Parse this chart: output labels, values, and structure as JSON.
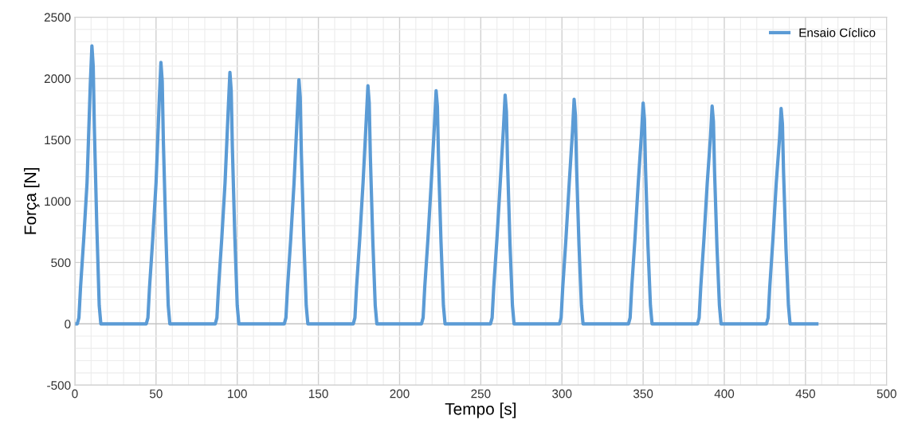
{
  "chart_data": {
    "type": "line",
    "xlabel": "Tempo [s]",
    "ylabel": "Força [N]",
    "xlim": [
      0,
      500
    ],
    "xticks": [
      0,
      50,
      100,
      150,
      200,
      250,
      300,
      350,
      400,
      450,
      500
    ],
    "ylim": [
      -500,
      2500
    ],
    "yticks": [
      -500,
      0,
      500,
      1000,
      1500,
      2000,
      2500
    ],
    "grid": true,
    "legend": "top right",
    "line_style": "solid",
    "series": [
      {
        "name": "Ensaio Cíclico",
        "color": "#5b9bd5",
        "x": [
          0,
          1.5,
          2.5,
          3.5,
          5.5,
          7.5,
          9.5,
          10.5,
          11.3,
          12,
          13.5,
          15,
          16,
          44,
          45,
          46,
          48,
          50,
          52,
          53,
          53.8,
          54.5,
          56,
          57.5,
          58.5,
          86.5,
          87.5,
          88.5,
          90.5,
          92.5,
          94.5,
          95.5,
          96.3,
          97,
          98.5,
          100,
          101,
          129,
          130,
          131,
          133,
          135,
          137,
          138,
          138.8,
          139.5,
          141,
          142.5,
          143.5,
          171.5,
          172.5,
          173.5,
          175.5,
          177.5,
          179.5,
          180.5,
          181.3,
          182,
          183.5,
          185,
          186,
          213.5,
          214.5,
          215.5,
          217.5,
          219.5,
          221.5,
          222.5,
          223.3,
          224,
          225.5,
          227,
          228,
          256,
          257,
          258,
          260,
          262,
          264,
          265,
          265.8,
          266.5,
          268,
          269.5,
          270.5,
          298.5,
          299.5,
          300.5,
          302.5,
          304.5,
          306.5,
          307.5,
          308.3,
          309,
          310.5,
          312,
          313,
          341,
          342,
          343,
          345,
          347,
          349,
          350,
          350.8,
          351.5,
          353,
          354.5,
          355.5,
          383.5,
          384.5,
          385.5,
          387.5,
          389.5,
          391.5,
          392.5,
          393.3,
          394,
          395.5,
          397,
          398,
          426,
          427,
          428,
          430,
          432,
          434,
          435,
          435.8,
          436.5,
          438,
          439.5,
          440.5,
          457
        ],
        "values": [
          0,
          0,
          50,
          300,
          700,
          1150,
          1950,
          2265,
          2100,
          1600,
          800,
          150,
          0,
          0,
          50,
          300,
          700,
          1150,
          1830,
          2130,
          1980,
          1490,
          750,
          150,
          0,
          0,
          50,
          300,
          700,
          1150,
          1760,
          2050,
          1900,
          1440,
          720,
          150,
          0,
          0,
          50,
          300,
          700,
          1150,
          1710,
          1990,
          1850,
          1390,
          700,
          150,
          0,
          0,
          50,
          300,
          700,
          1150,
          1670,
          1940,
          1800,
          1360,
          680,
          150,
          0,
          0,
          50,
          300,
          700,
          1150,
          1630,
          1900,
          1770,
          1330,
          670,
          150,
          0,
          0,
          50,
          300,
          700,
          1150,
          1600,
          1865,
          1730,
          1310,
          650,
          150,
          0,
          0,
          50,
          300,
          700,
          1150,
          1570,
          1830,
          1700,
          1280,
          640,
          150,
          0,
          0,
          50,
          300,
          700,
          1150,
          1550,
          1800,
          1670,
          1260,
          630,
          150,
          0,
          0,
          50,
          300,
          700,
          1150,
          1530,
          1775,
          1650,
          1240,
          620,
          150,
          0,
          0,
          50,
          300,
          700,
          1150,
          1510,
          1755,
          1630,
          1230,
          610,
          150,
          0,
          0
        ]
      }
    ]
  }
}
